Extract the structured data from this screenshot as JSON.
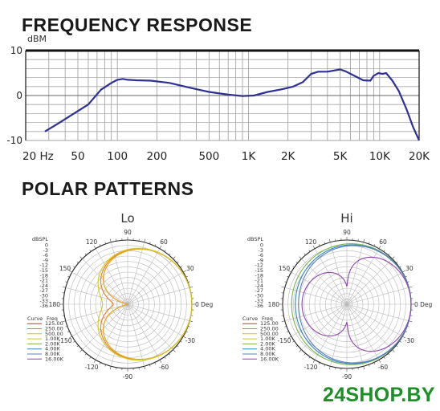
{
  "titles": {
    "frequency_response": "FREQUENCY RESPONSE",
    "polar_patterns": "POLAR PATTERNS"
  },
  "watermark": "24SHOP.BY",
  "chart_data": [
    {
      "type": "line",
      "id": "frequency-response",
      "ylabel": "dBM",
      "xscale": "log",
      "xlim": [
        20,
        20000
      ],
      "ylim": [
        -10,
        10
      ],
      "grid": true,
      "x_tick_values": [
        20,
        50,
        100,
        200,
        500,
        1000,
        2000,
        5000,
        10000,
        20000
      ],
      "x_tick_labels": [
        "20 Hz",
        "50",
        "100",
        "200",
        "500",
        "1K",
        "2K",
        "5K",
        "10K",
        "20K"
      ],
      "y_tick_values": [
        10,
        0,
        -10
      ],
      "y_tick_labels": [
        "10",
        "0",
        "-10"
      ],
      "line_color": "#2e3192",
      "series": [
        {
          "x": [
            28,
            35,
            45,
            60,
            75,
            90,
            100,
            110,
            120,
            140,
            180,
            250,
            350,
            500,
            700,
            900,
            1100,
            1400,
            1800,
            2200,
            2600,
            3000,
            3400,
            4000,
            5000,
            5500,
            6500,
            7500,
            8500,
            9000,
            9800,
            10500,
            11200,
            12500,
            14000,
            16000,
            18000,
            20000
          ],
          "y": [
            -8.0,
            -6.3,
            -4.3,
            -2.0,
            1.3,
            2.8,
            3.5,
            3.7,
            3.5,
            3.4,
            3.3,
            2.8,
            1.8,
            0.8,
            0.2,
            -0.1,
            0.0,
            0.8,
            1.4,
            2.0,
            3.0,
            4.8,
            5.3,
            5.3,
            5.8,
            5.4,
            4.3,
            3.4,
            3.3,
            4.4,
            5.0,
            4.8,
            5.0,
            3.3,
            1.0,
            -3.0,
            -7.0,
            -10.0
          ]
        }
      ]
    },
    {
      "type": "polar",
      "id": "polar-lo",
      "title": "Lo",
      "r_unit": "dBSPL",
      "r_tick_labels": [
        "0",
        "-3",
        "-6",
        "-9",
        "-12",
        "-15",
        "-18",
        "-21",
        "-24",
        "-27",
        "-30",
        "-33",
        "-36"
      ],
      "angle_labels": [
        "90",
        "60",
        "30",
        "0 Deg",
        "-30",
        "-60",
        "-90",
        "-120",
        "-150",
        "180",
        "150",
        "120"
      ],
      "legend_header": [
        "Curve",
        "Freq"
      ],
      "legend": [
        {
          "freq": "125.00",
          "color": "#c0392b"
        },
        {
          "freq": "250.00",
          "color": "#e67e22"
        },
        {
          "freq": "500.00",
          "color": "#e6b422"
        },
        {
          "freq": "1.00K",
          "color": "#d4c81a"
        },
        {
          "freq": "2.00K",
          "color": "#7ab648"
        },
        {
          "freq": "4.00K",
          "color": "#2e86c1"
        },
        {
          "freq": "8.00K",
          "color": "#5b7fbf"
        },
        {
          "freq": "16.00K",
          "color": "#8e44ad"
        }
      ],
      "curves": [
        {
          "freq": "125.00",
          "shape": "cardioid",
          "a": 0.5,
          "b": 0.5
        },
        {
          "freq": "250.00",
          "shape": "cardioid",
          "a": 0.52,
          "b": 0.48
        },
        {
          "freq": "500.00",
          "shape": "cardioid",
          "a": 0.5,
          "b": 0.5
        },
        {
          "freq": "1.00K",
          "shape": "cardioid",
          "a": 0.54,
          "b": 0.46
        }
      ]
    },
    {
      "type": "polar",
      "id": "polar-hi",
      "title": "Hi",
      "r_unit": "dBSPL",
      "r_tick_labels": [
        "0",
        "-3",
        "-6",
        "-9",
        "-12",
        "-15",
        "-18",
        "-21",
        "-24",
        "-27",
        "-30",
        "-33",
        "-36"
      ],
      "angle_labels": [
        "90",
        "60",
        "30",
        "0 Deg",
        "-30",
        "-60",
        "-90",
        "-120",
        "-150",
        "180",
        "150",
        "120"
      ],
      "legend_header": [
        "Curve",
        "Freq"
      ],
      "legend": [
        {
          "freq": "125.00",
          "color": "#c0392b"
        },
        {
          "freq": "250.00",
          "color": "#e67e22"
        },
        {
          "freq": "500.00",
          "color": "#e6b422"
        },
        {
          "freq": "1.00K",
          "color": "#d4c81a"
        },
        {
          "freq": "2.00K",
          "color": "#7ab648"
        },
        {
          "freq": "4.00K",
          "color": "#2e86c1"
        },
        {
          "freq": "8.00K",
          "color": "#5b7fbf"
        },
        {
          "freq": "16.00K",
          "color": "#8e44ad"
        }
      ],
      "curves": [
        {
          "freq": "2.00K",
          "shape": "cardioid",
          "a": 0.78,
          "b": 0.22
        },
        {
          "freq": "4.00K",
          "shape": "cardioid",
          "a": 0.72,
          "b": 0.28
        },
        {
          "freq": "8.00K",
          "shape": "cardioid",
          "a": 0.68,
          "b": 0.32
        },
        {
          "freq": "16.00K",
          "shape": "lobed",
          "a": 0.62,
          "b": 0.38
        }
      ]
    }
  ]
}
